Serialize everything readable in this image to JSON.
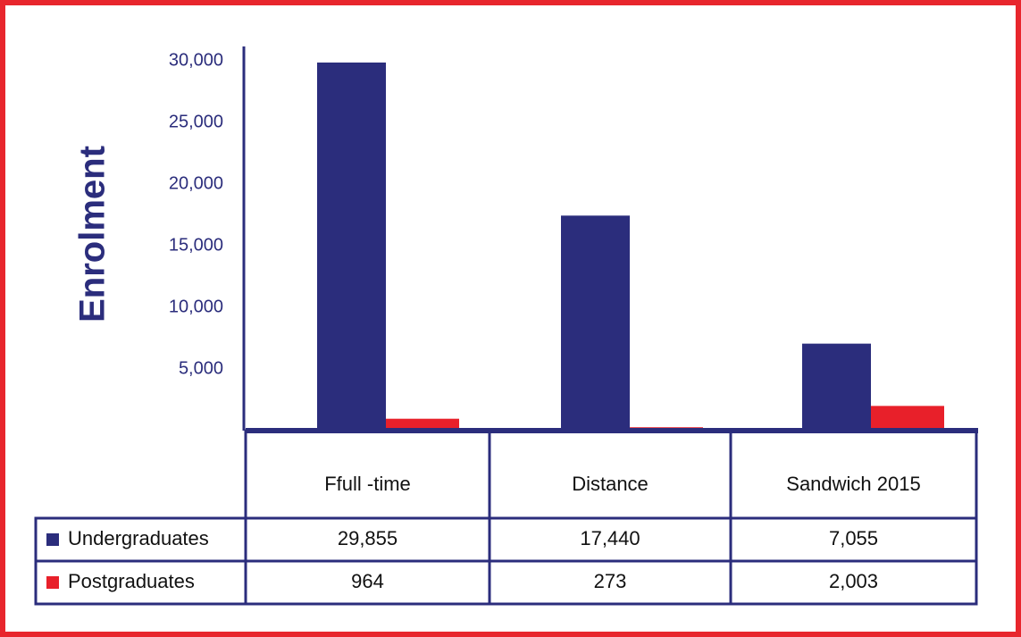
{
  "chart_data": {
    "type": "bar",
    "y_label": "Enrolment",
    "categories": [
      "Ffull -time",
      "Distance",
      "Sandwich 2015"
    ],
    "series": [
      {
        "name": "Undergraduates",
        "color": "#2b2d7c",
        "values": [
          29855,
          17440,
          7055
        ],
        "value_labels": [
          "29,855",
          "17,440",
          "7,055"
        ]
      },
      {
        "name": "Postgraduates",
        "color": "#e8202a",
        "values": [
          964,
          273,
          2003
        ],
        "value_labels": [
          "964",
          "273",
          "2,003"
        ]
      }
    ],
    "ylim": [
      0,
      30000
    ],
    "yticks": [
      {
        "value": 5000,
        "label": "5,000"
      },
      {
        "value": 10000,
        "label": "10,000"
      },
      {
        "value": 15000,
        "label": "15,000"
      },
      {
        "value": 20000,
        "label": "20,000"
      },
      {
        "value": 25000,
        "label": "25,000"
      },
      {
        "value": 30000,
        "label": "30,000"
      }
    ],
    "grid": false
  }
}
